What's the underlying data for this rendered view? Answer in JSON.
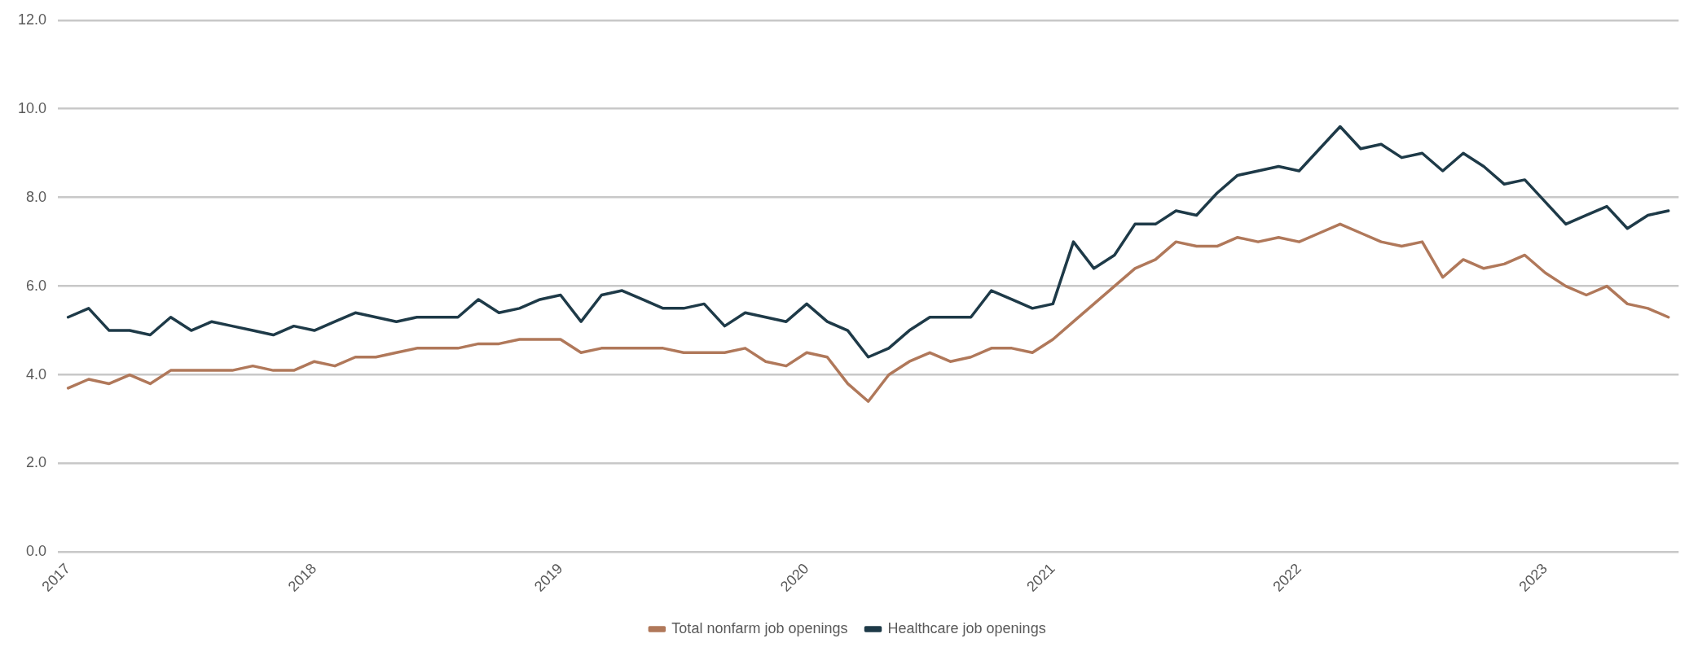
{
  "chart_data": {
    "type": "line",
    "categories": [
      "2017",
      null,
      null,
      null,
      null,
      null,
      null,
      null,
      null,
      null,
      null,
      null,
      "2018",
      null,
      null,
      null,
      null,
      null,
      null,
      null,
      null,
      null,
      null,
      null,
      "2019",
      null,
      null,
      null,
      null,
      null,
      null,
      null,
      null,
      null,
      null,
      null,
      "2020",
      null,
      null,
      null,
      null,
      null,
      null,
      null,
      null,
      null,
      null,
      null,
      "2021",
      null,
      null,
      null,
      null,
      null,
      null,
      null,
      null,
      null,
      null,
      null,
      "2022",
      null,
      null,
      null,
      null,
      null,
      null,
      null,
      null,
      null,
      null,
      null,
      "2023",
      null,
      null,
      null,
      null,
      null,
      null
    ],
    "series": [
      {
        "name": "Total nonfarm job openings",
        "color": "#b0785a",
        "values": [
          3.7,
          3.9,
          3.8,
          4.0,
          3.8,
          4.1,
          4.1,
          4.1,
          4.1,
          4.2,
          4.1,
          4.1,
          4.3,
          4.2,
          4.4,
          4.4,
          4.5,
          4.6,
          4.6,
          4.6,
          4.7,
          4.7,
          4.8,
          4.8,
          4.8,
          4.5,
          4.6,
          4.6,
          4.6,
          4.6,
          4.5,
          4.5,
          4.5,
          4.6,
          4.3,
          4.2,
          4.5,
          4.4,
          3.8,
          3.4,
          4.0,
          4.3,
          4.5,
          4.3,
          4.4,
          4.6,
          4.6,
          4.5,
          4.8,
          5.2,
          5.6,
          6.0,
          6.4,
          6.6,
          7.0,
          6.9,
          6.9,
          7.1,
          7.0,
          7.1,
          7.0,
          7.2,
          7.4,
          7.2,
          7.0,
          6.9,
          7.0,
          6.2,
          6.6,
          6.4,
          6.5,
          6.7,
          6.3,
          6.0,
          5.8,
          6.0,
          5.6,
          5.5,
          5.3
        ]
      },
      {
        "name": "Healthcare job openings",
        "color": "#1e3a48",
        "values": [
          5.3,
          5.5,
          5.0,
          5.0,
          4.9,
          5.3,
          5.0,
          5.2,
          5.1,
          5.0,
          4.9,
          5.1,
          5.0,
          5.2,
          5.4,
          5.3,
          5.2,
          5.3,
          5.3,
          5.3,
          5.7,
          5.4,
          5.5,
          5.7,
          5.8,
          5.2,
          5.8,
          5.9,
          5.7,
          5.5,
          5.5,
          5.6,
          5.1,
          5.4,
          5.3,
          5.2,
          5.6,
          5.2,
          5.0,
          4.4,
          4.6,
          5.0,
          5.3,
          5.3,
          5.3,
          5.9,
          5.7,
          5.5,
          5.6,
          7.0,
          6.4,
          6.7,
          7.4,
          7.4,
          7.7,
          7.6,
          8.1,
          8.5,
          8.6,
          8.7,
          8.6,
          9.1,
          9.6,
          9.1,
          9.2,
          8.9,
          9.0,
          8.6,
          9.0,
          8.7,
          8.3,
          8.4,
          7.9,
          7.4,
          7.6,
          7.8,
          7.3,
          7.6,
          7.7
        ]
      }
    ],
    "ylim": [
      0,
      12
    ],
    "yticks": [
      {
        "value": 0,
        "label": "0.0"
      },
      {
        "value": 2,
        "label": "2.0"
      },
      {
        "value": 4,
        "label": "4.0"
      },
      {
        "value": 6,
        "label": "6.0"
      },
      {
        "value": 8,
        "label": "8.0"
      },
      {
        "value": 10,
        "label": "10.0"
      },
      {
        "value": 12,
        "label": "12.0"
      }
    ],
    "grid": "y",
    "legend": "bottom"
  }
}
